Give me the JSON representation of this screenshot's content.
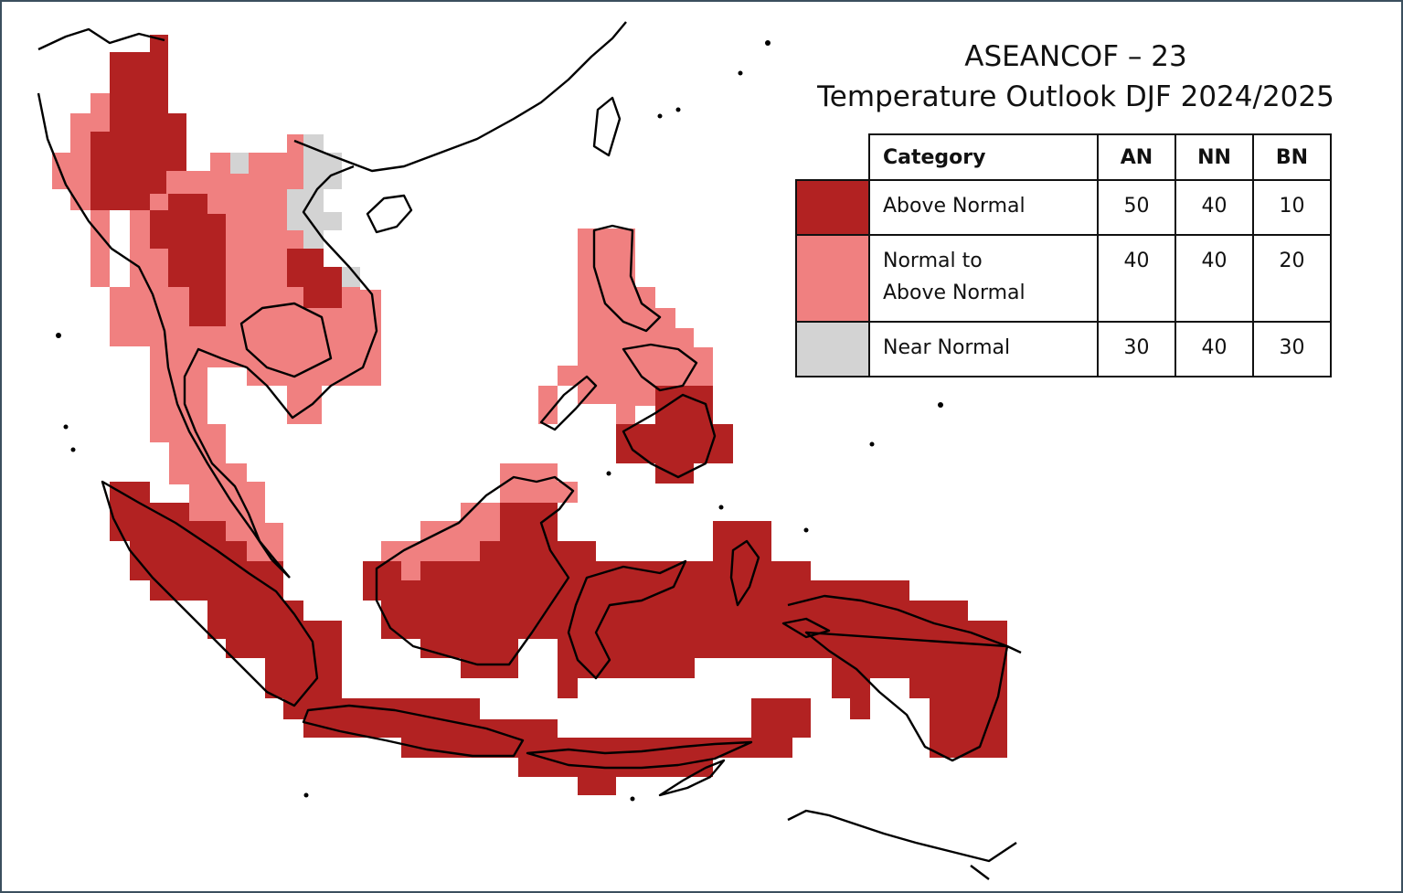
{
  "title": {
    "line1": "ASEANCOF – 23",
    "line2": "Temperature Outlook DJF 2024/2025"
  },
  "legend": {
    "headers": {
      "category": "Category",
      "an": "AN",
      "nn": "NN",
      "bn": "BN"
    },
    "rows": [
      {
        "label": "Above Normal",
        "color": "#b22222",
        "an": "50",
        "nn": "40",
        "bn": "10"
      },
      {
        "label_line1": "Normal to",
        "label_line2": "Above Normal",
        "color": "#f08080",
        "an": "40",
        "nn": "40",
        "bn": "20"
      },
      {
        "label": "Near Normal",
        "color": "#d3d3d3",
        "an": "30",
        "nn": "40",
        "bn": "30"
      }
    ]
  },
  "colors": {
    "above_normal": "#b22222",
    "normal_to_above": "#f08080",
    "near_normal": "#d3d3d3",
    "coastline": "#000000",
    "frame_border": "#3b4f5e"
  }
}
